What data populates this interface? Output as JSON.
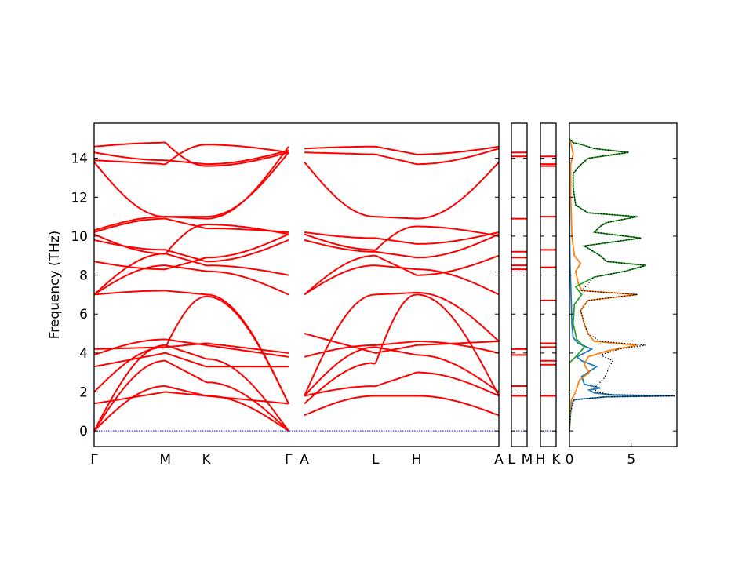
{
  "chart_data": {
    "type": "line",
    "ylabel": "Frequency (THz)",
    "ylim": [
      -0.8,
      15.8
    ],
    "y_ticks": [
      {
        "value": 0,
        "label": "0"
      },
      {
        "value": 2,
        "label": "2"
      },
      {
        "value": 4,
        "label": "4"
      },
      {
        "value": 6,
        "label": "6"
      },
      {
        "value": 8,
        "label": "8"
      },
      {
        "value": 10,
        "label": "10"
      },
      {
        "value": 12,
        "label": "12"
      },
      {
        "value": 14,
        "label": "14"
      }
    ],
    "band_color": "#ff0000",
    "zero_line_color": "#0000cc",
    "band_segments": [
      {
        "name": "Γ-M-K-Γ",
        "x": [
          0.0,
          0.9,
          1.42,
          2.46
        ],
        "tick_labels": [
          "Γ",
          "M",
          "K",
          "Γ"
        ],
        "panel": "main"
      },
      {
        "name": "A-L-H-A",
        "x": [
          2.66,
          3.56,
          4.08,
          5.12
        ],
        "tick_labels": [
          "A",
          "L",
          "H",
          "A"
        ],
        "panel": "main"
      },
      {
        "name": "L-M",
        "x": [
          0.0,
          1.0
        ],
        "tick_labels": [
          "L",
          "M"
        ],
        "panel": "small1",
        "flat_bands": [
          14.3,
          14.1,
          10.9,
          9.2,
          8.9,
          8.5,
          8.3,
          4.2,
          3.9,
          2.3,
          1.8,
          0
        ]
      },
      {
        "name": "H-K",
        "x": [
          0.0,
          1.0
        ],
        "tick_labels": [
          "H",
          "K"
        ],
        "panel": "small2",
        "flat_bands": [
          14.1,
          13.7,
          13.6,
          11.0,
          9.3,
          8.4,
          6.7,
          4.5,
          4.3,
          3.6,
          3.4,
          1.8,
          0
        ]
      }
    ],
    "dos": {
      "xlim": [
        0,
        8.7
      ],
      "x_ticks": [
        {
          "value": 0,
          "label": "0"
        },
        {
          "value": 5,
          "label": "5"
        }
      ],
      "series": [
        {
          "color": "#1f77b4",
          "style": "solid",
          "points": [
            [
              0.0,
              0
            ],
            [
              0.05,
              0.5
            ],
            [
              0.1,
              1.0
            ],
            [
              0.2,
              1.4
            ],
            [
              0.35,
              1.6
            ],
            [
              3.0,
              1.75
            ],
            [
              8.5,
              1.8
            ],
            [
              3.5,
              1.85
            ],
            [
              2.0,
              1.95
            ],
            [
              1.6,
              2.1
            ],
            [
              2.5,
              2.2
            ],
            [
              1.2,
              2.4
            ],
            [
              1.0,
              2.8
            ],
            [
              2.2,
              3.3
            ],
            [
              1.0,
              3.6
            ],
            [
              0.6,
              3.8
            ],
            [
              1.8,
              4.2
            ],
            [
              0.7,
              4.5
            ],
            [
              0.3,
              4.8
            ],
            [
              0.2,
              5.5
            ],
            [
              0.15,
              6.5
            ],
            [
              0.1,
              7.5
            ],
            [
              0.05,
              8.5
            ],
            [
              0.02,
              10
            ],
            [
              0,
              15
            ]
          ]
        },
        {
          "color": "#ff7f0e",
          "style": "solid",
          "points": [
            [
              0.0,
              0
            ],
            [
              0.05,
              1.0
            ],
            [
              0.15,
              1.6
            ],
            [
              0.3,
              1.75
            ],
            [
              0.5,
              2.0
            ],
            [
              0.8,
              2.6
            ],
            [
              1.6,
              3.0
            ],
            [
              1.2,
              3.4
            ],
            [
              1.5,
              3.8
            ],
            [
              3.0,
              4.1
            ],
            [
              5.5,
              4.4
            ],
            [
              2.0,
              4.6
            ],
            [
              1.5,
              5.0
            ],
            [
              1.2,
              5.5
            ],
            [
              0.9,
              6.2
            ],
            [
              1.5,
              6.7
            ],
            [
              5.5,
              7.0
            ],
            [
              1.0,
              7.2
            ],
            [
              0.7,
              7.6
            ],
            [
              0.5,
              8.2
            ],
            [
              0.9,
              8.6
            ],
            [
              0.4,
              9.0
            ],
            [
              0.2,
              10
            ],
            [
              0.15,
              11
            ],
            [
              0.1,
              12
            ],
            [
              0.1,
              13.7
            ],
            [
              0.3,
              14.2
            ],
            [
              0.1,
              14.8
            ],
            [
              0,
              15
            ]
          ]
        },
        {
          "color": "#2ca02c",
          "style": "solid",
          "points": [
            [
              0.0,
              0
            ],
            [
              0.0,
              3.5
            ],
            [
              0.5,
              3.8
            ],
            [
              1.2,
              4.3
            ],
            [
              0.6,
              4.7
            ],
            [
              0.3,
              5.5
            ],
            [
              0.4,
              6.5
            ],
            [
              1.0,
              7.0
            ],
            [
              0.5,
              7.4
            ],
            [
              2.0,
              7.9
            ],
            [
              4.5,
              8.2
            ],
            [
              6.2,
              8.5
            ],
            [
              3.0,
              8.7
            ],
            [
              2.5,
              9.0
            ],
            [
              1.2,
              9.5
            ],
            [
              5.8,
              9.9
            ],
            [
              2.0,
              10.2
            ],
            [
              2.5,
              10.5
            ],
            [
              3.0,
              10.7
            ],
            [
              5.5,
              11.0
            ],
            [
              1.5,
              11.2
            ],
            [
              0.5,
              11.6
            ],
            [
              0.3,
              12.5
            ],
            [
              0.3,
              13.2
            ],
            [
              0.8,
              13.6
            ],
            [
              1.5,
              14.0
            ],
            [
              4.8,
              14.3
            ],
            [
              2.0,
              14.5
            ],
            [
              1.0,
              14.7
            ],
            [
              0.3,
              14.8
            ],
            [
              0,
              15
            ]
          ]
        },
        {
          "color": "#000000",
          "style": "dotted",
          "points": [
            [
              0.0,
              0
            ],
            [
              0.1,
              1.0
            ],
            [
              0.4,
              1.6
            ],
            [
              3.0,
              1.75
            ],
            [
              8.5,
              1.8
            ],
            [
              3.5,
              1.85
            ],
            [
              2.2,
              2.0
            ],
            [
              2.0,
              2.2
            ],
            [
              2.8,
              2.7
            ],
            [
              3.5,
              3.6
            ],
            [
              2.5,
              3.9
            ],
            [
              4.0,
              4.2
            ],
            [
              6.2,
              4.4
            ],
            [
              2.5,
              4.6
            ],
            [
              1.5,
              5.0
            ],
            [
              1.2,
              5.5
            ],
            [
              0.9,
              6.2
            ],
            [
              1.5,
              6.7
            ],
            [
              5.5,
              7.0
            ],
            [
              1.0,
              7.2
            ],
            [
              2.0,
              7.9
            ],
            [
              4.5,
              8.2
            ],
            [
              6.2,
              8.5
            ],
            [
              3.0,
              8.7
            ],
            [
              2.5,
              9.0
            ],
            [
              1.2,
              9.5
            ],
            [
              5.8,
              9.9
            ],
            [
              2.0,
              10.2
            ],
            [
              2.5,
              10.5
            ],
            [
              3.0,
              10.7
            ],
            [
              5.5,
              11.0
            ],
            [
              1.5,
              11.2
            ],
            [
              0.5,
              11.6
            ],
            [
              0.3,
              12.5
            ],
            [
              0.3,
              13.2
            ],
            [
              0.8,
              13.6
            ],
            [
              1.5,
              14.0
            ],
            [
              4.8,
              14.3
            ],
            [
              2.0,
              14.5
            ],
            [
              1.0,
              14.7
            ],
            [
              0.3,
              14.8
            ],
            [
              0,
              15
            ]
          ]
        }
      ]
    }
  }
}
